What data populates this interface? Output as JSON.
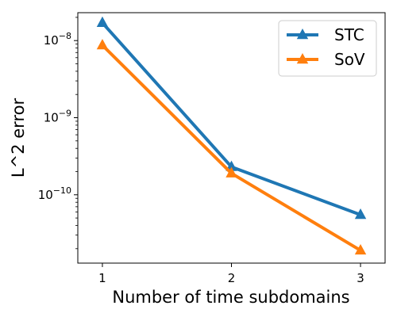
{
  "chart_data": {
    "type": "line",
    "title": "",
    "xlabel": "Number of time subdomains",
    "ylabel": "L^2 error",
    "x": [
      1,
      2,
      3
    ],
    "xticks": [
      "1",
      "2",
      "3"
    ],
    "yscale": "log",
    "ylim": [
      1.3e-11,
      2.3e-08
    ],
    "yticks": [
      {
        "value": 1e-08,
        "base": "10",
        "exp": "−8"
      },
      {
        "value": 1e-09,
        "base": "10",
        "exp": "−9"
      },
      {
        "value": 1e-10,
        "base": "10",
        "exp": "−10"
      }
    ],
    "grid": false,
    "legend_position": "top-right",
    "series": [
      {
        "name": "STC",
        "color": "#1f77b4",
        "marker": "triangle-up",
        "values": [
          1.7e-08,
          2.3e-10,
          5.5e-11
        ]
      },
      {
        "name": "SoV",
        "color": "#ff7f0e",
        "marker": "triangle-up",
        "values": [
          8.7e-09,
          1.9e-10,
          1.9e-11
        ]
      }
    ]
  }
}
